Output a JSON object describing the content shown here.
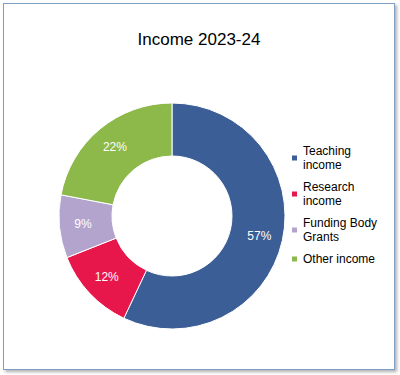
{
  "chart_data": {
    "type": "pie",
    "title": "Income 2023-24",
    "categories": [
      "Teaching income",
      "Research income",
      "Funding Body Grants",
      "Other income"
    ],
    "values": [
      57,
      12,
      9,
      22
    ],
    "value_labels": [
      "57%",
      "12%",
      "9%",
      "22%"
    ],
    "colors": [
      "#3B5E96",
      "#E8174B",
      "#B3A4CE",
      "#8DB84A"
    ],
    "data_labels": true,
    "legend": "right"
  }
}
